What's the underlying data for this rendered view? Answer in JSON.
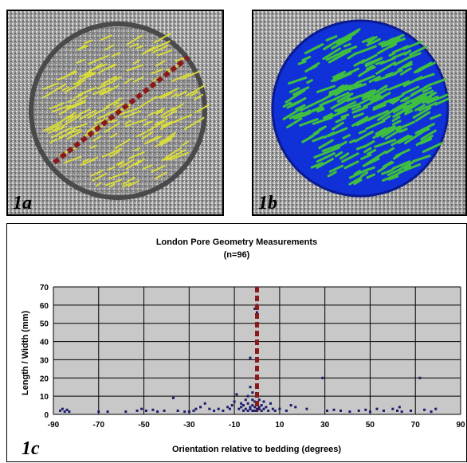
{
  "figure": {
    "panels": [
      {
        "label": "1a",
        "image": "core-sample-yellow-pores"
      },
      {
        "label": "1b",
        "image": "core-sample-blue-green-pores"
      },
      {
        "label": "1c",
        "image": "scatter-chart"
      }
    ],
    "colors": {
      "pore_yellow": "#d8dc3a",
      "pore_green": "#3fbf3f",
      "matrix_blue": "#1030d8",
      "bedding_line": "#8b1a1a",
      "plot_area": "#c8c8c8",
      "point": "#1a1a6e"
    }
  },
  "chart_data": {
    "type": "scatter",
    "title": "London Pore Geometry Measurements",
    "subtitle": "(n=96)",
    "xlabel": "Orientation relative to bedding (degrees)",
    "ylabel": "Length / Width (mm)",
    "xlim": [
      -90,
      90
    ],
    "ylim": [
      0,
      70
    ],
    "xticks": [
      "-90",
      "-70",
      "-50",
      "-30",
      "-10",
      "10",
      "30",
      "50",
      "70",
      "90"
    ],
    "yticks": [
      "0",
      "10",
      "20",
      "30",
      "40",
      "50",
      "60",
      "70"
    ],
    "grid": true,
    "reference_line_x": 0,
    "points": [
      [
        -87,
        2
      ],
      [
        -86,
        3
      ],
      [
        -85,
        1.5
      ],
      [
        -84,
        2.5
      ],
      [
        -83,
        1.5
      ],
      [
        -70,
        1.5
      ],
      [
        -66,
        1.5
      ],
      [
        -58,
        1.5
      ],
      [
        -53,
        2
      ],
      [
        -51,
        3
      ],
      [
        -49,
        2
      ],
      [
        -46,
        2.5
      ],
      [
        -44,
        1.5
      ],
      [
        -41,
        2
      ],
      [
        -37,
        9
      ],
      [
        -32,
        1.5
      ],
      [
        -30,
        1.5
      ],
      [
        -28,
        2
      ],
      [
        -25,
        4
      ],
      [
        -23,
        6
      ],
      [
        -21,
        3
      ],
      [
        -19,
        2
      ],
      [
        -17,
        3
      ],
      [
        -15,
        2
      ],
      [
        -13,
        4
      ],
      [
        -12,
        3
      ],
      [
        -11,
        5
      ],
      [
        -10,
        7
      ],
      [
        -9,
        11
      ],
      [
        -8,
        3
      ],
      [
        -7,
        6
      ],
      [
        -7,
        4
      ],
      [
        -6,
        5
      ],
      [
        -6,
        2
      ],
      [
        -5,
        8
      ],
      [
        -5,
        3
      ],
      [
        -4,
        6
      ],
      [
        -4,
        10
      ],
      [
        -4,
        2
      ],
      [
        -3,
        4
      ],
      [
        -3,
        31
      ],
      [
        -3,
        15
      ],
      [
        -3,
        3
      ],
      [
        -2,
        5
      ],
      [
        -2,
        8
      ],
      [
        -2,
        12
      ],
      [
        -2,
        2
      ],
      [
        -1,
        4
      ],
      [
        -1,
        7
      ],
      [
        -1,
        58
      ],
      [
        -1,
        2
      ],
      [
        0,
        3
      ],
      [
        0,
        6
      ],
      [
        0,
        10
      ],
      [
        0,
        20
      ],
      [
        0,
        60
      ],
      [
        0,
        56
      ],
      [
        0,
        2
      ],
      [
        1,
        4
      ],
      [
        1,
        8
      ],
      [
        1,
        3
      ],
      [
        2,
        5
      ],
      [
        2,
        2
      ],
      [
        3,
        7
      ],
      [
        3,
        3
      ],
      [
        4,
        4
      ],
      [
        5,
        2
      ],
      [
        6,
        6
      ],
      [
        7,
        3
      ],
      [
        8,
        2
      ],
      [
        10,
        3
      ],
      [
        13,
        2
      ],
      [
        17,
        4
      ],
      [
        29,
        20
      ],
      [
        31,
        2
      ],
      [
        34,
        2.5
      ],
      [
        37,
        2
      ],
      [
        41,
        1.5
      ],
      [
        45,
        2
      ],
      [
        48,
        2.5
      ],
      [
        50,
        1.5
      ],
      [
        53,
        3
      ],
      [
        56,
        2
      ],
      [
        60,
        3
      ],
      [
        62,
        2
      ],
      [
        63,
        4
      ],
      [
        64,
        1.5
      ],
      [
        68,
        2
      ],
      [
        72,
        20
      ],
      [
        74,
        2.5
      ],
      [
        77,
        1.5
      ],
      [
        79,
        3
      ],
      [
        -35,
        2
      ],
      [
        -27,
        3
      ],
      [
        15,
        5
      ],
      [
        22,
        3
      ]
    ]
  }
}
